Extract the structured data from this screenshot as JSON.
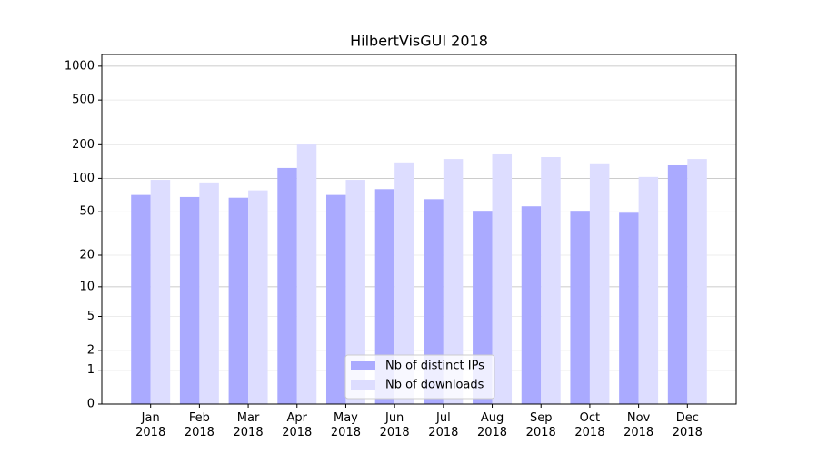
{
  "chart_data": {
    "type": "bar",
    "title": "HilbertVisGUI 2018",
    "scale": "log1p",
    "categories": [
      "Jan\n2018",
      "Feb\n2018",
      "Mar\n2018",
      "Apr\n2018",
      "May\n2018",
      "Jun\n2018",
      "Jul\n2018",
      "Aug\n2018",
      "Sep\n2018",
      "Oct\n2018",
      "Nov\n2018",
      "Dec\n2018"
    ],
    "series": [
      {
        "name": "Nb of distinct IPs",
        "color": "#aaaaff",
        "values": [
          71,
          68,
          67,
          124,
          71,
          80,
          65,
          51,
          56,
          51,
          49,
          131
        ]
      },
      {
        "name": "Nb of downloads",
        "color": "#ddddff",
        "values": [
          97,
          92,
          78,
          201,
          97,
          139,
          149,
          164,
          155,
          134,
          103,
          149
        ]
      }
    ],
    "ylim": [
      0,
      1270
    ],
    "yticks": [
      0,
      1,
      2,
      5,
      10,
      20,
      50,
      100,
      200,
      500,
      1000
    ],
    "grid": true,
    "legend": "lower center"
  }
}
